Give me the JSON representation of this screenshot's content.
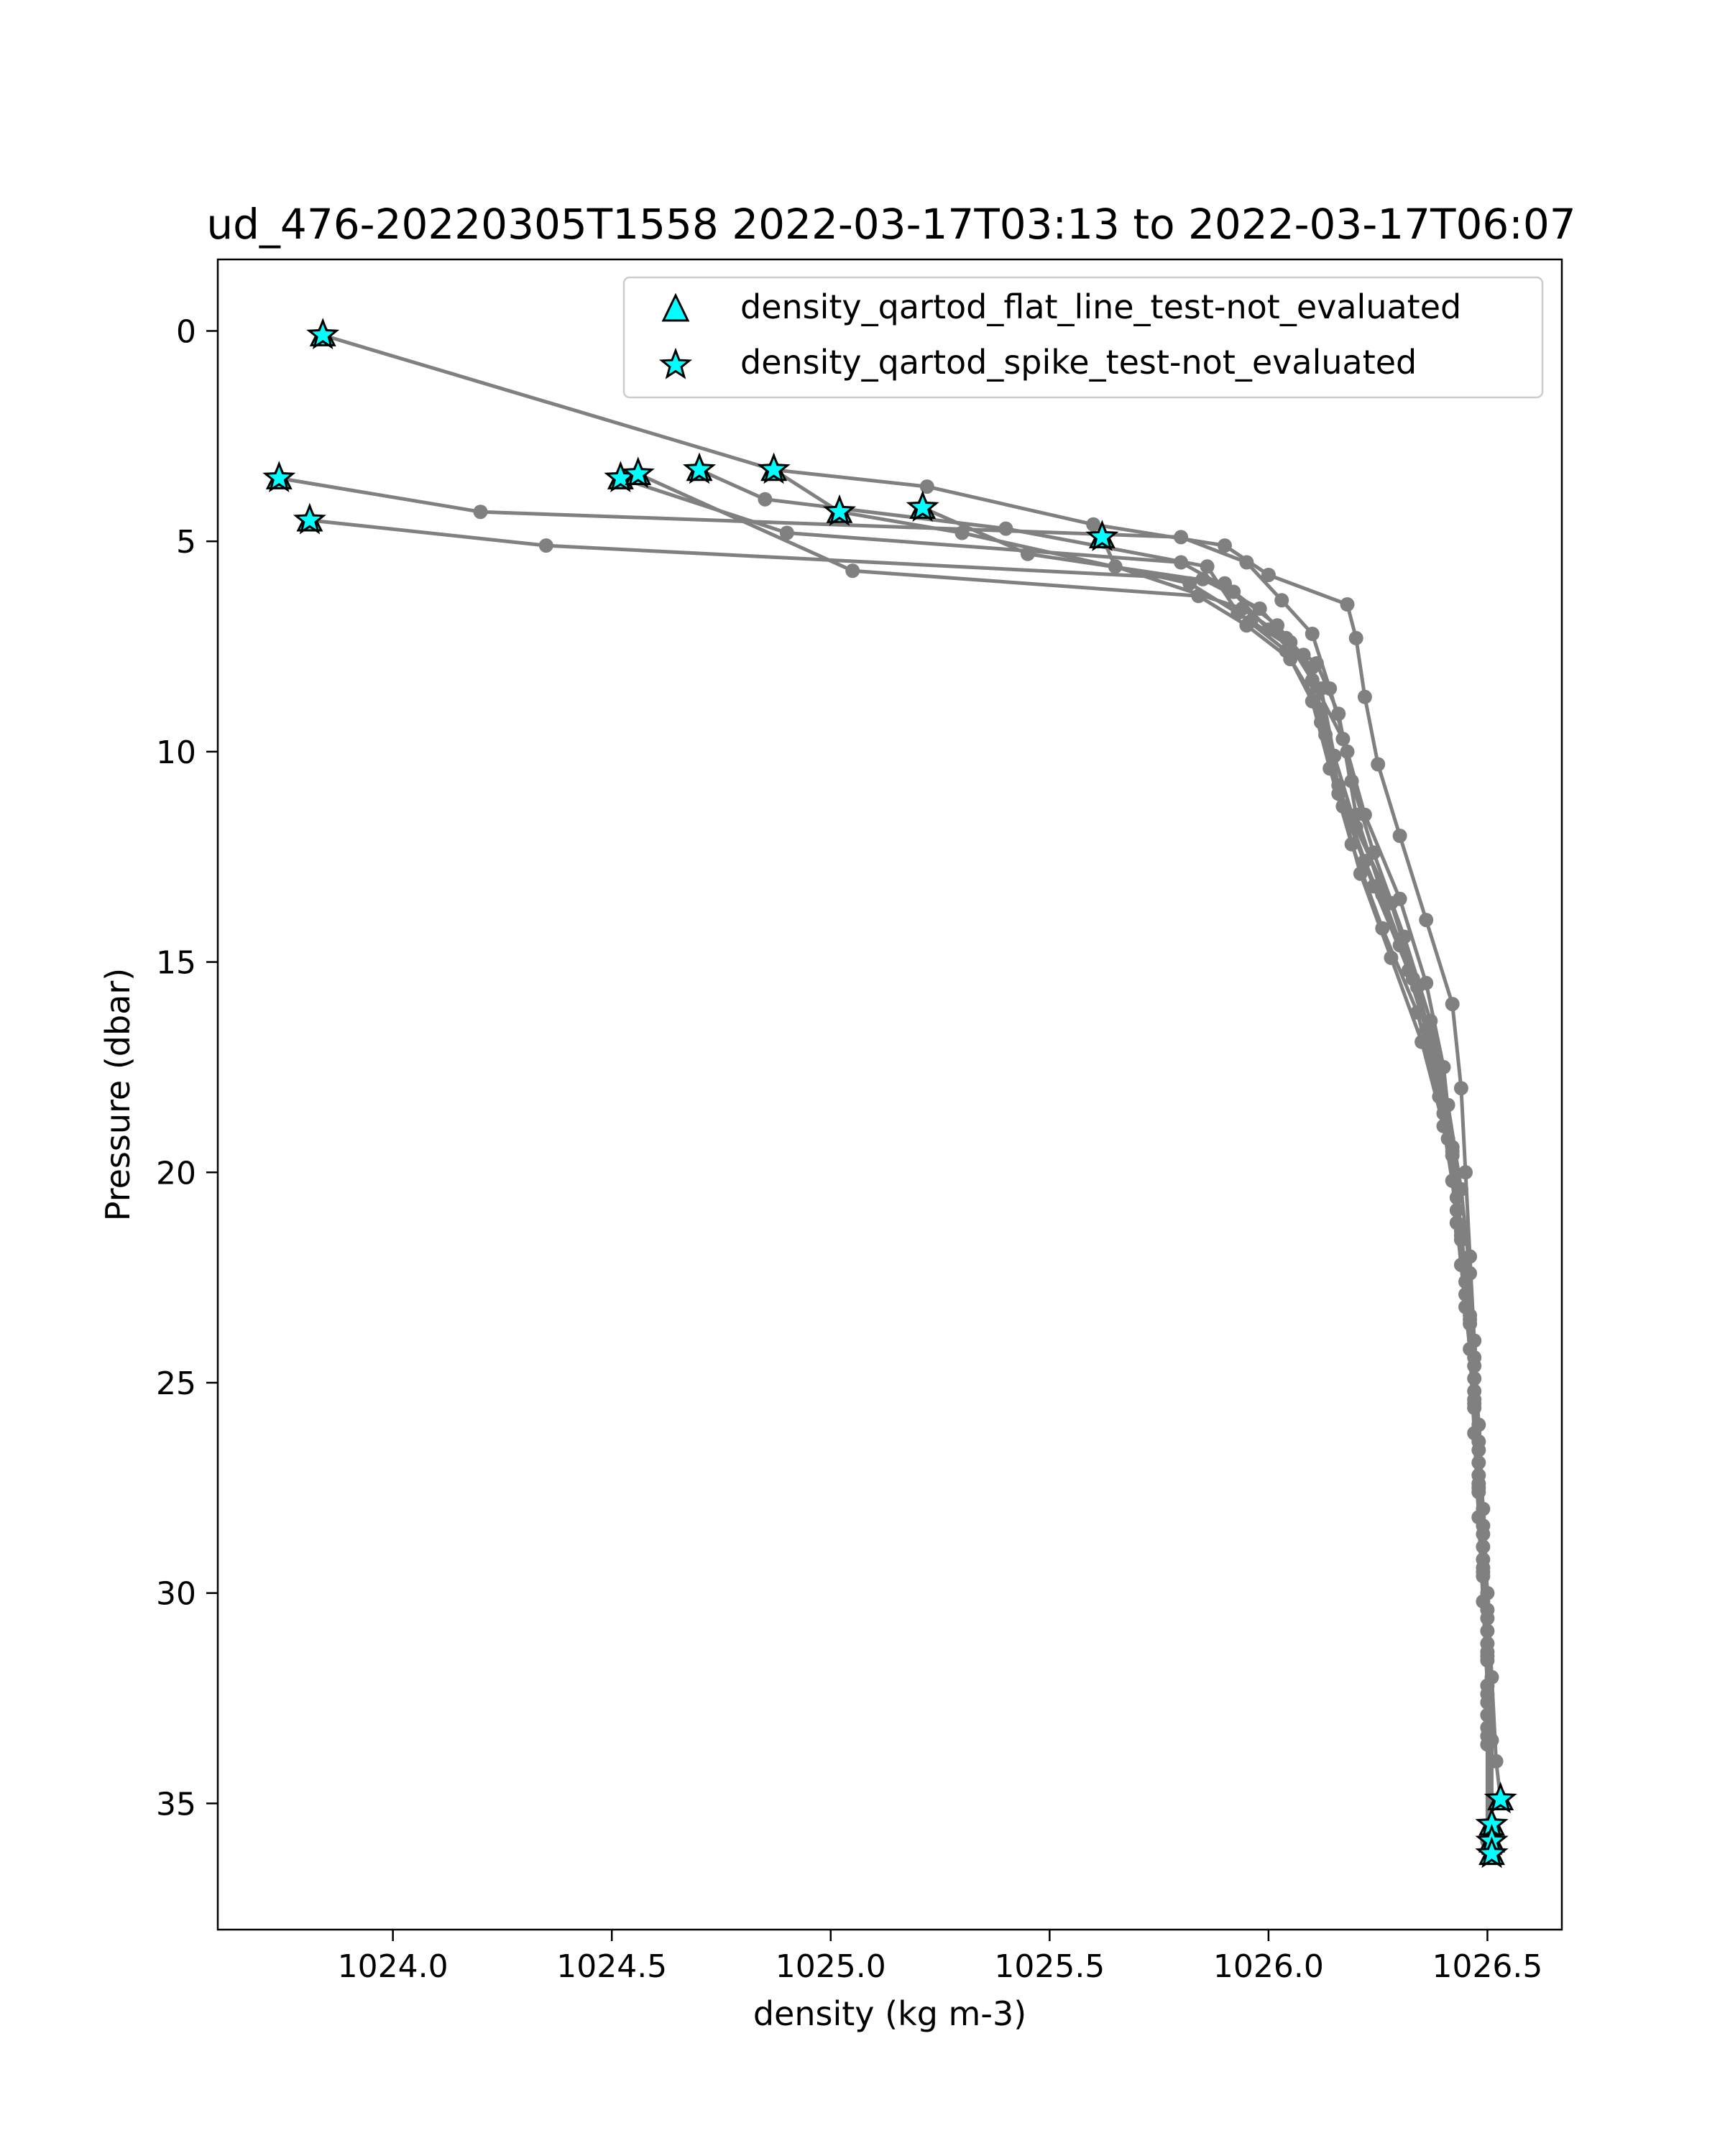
{
  "chart_data": {
    "type": "line",
    "title": "ud_476-20220305T1558 2022-03-17T03:13 to 2022-03-17T06:07",
    "xlabel": "density (kg m-3)",
    "ylabel": "Pressure (dbar)",
    "xlim": [
      1023.6,
      1026.67
    ],
    "ylim": [
      38.0,
      -1.7
    ],
    "y_inverted": true,
    "grid": false,
    "x_ticks": [
      {
        "value": 1024.0,
        "label": "1024.0"
      },
      {
        "value": 1024.5,
        "label": "1024.5"
      },
      {
        "value": 1025.0,
        "label": "1025.0"
      },
      {
        "value": 1025.5,
        "label": "1025.5"
      },
      {
        "value": 1026.0,
        "label": "1026.0"
      },
      {
        "value": 1026.5,
        "label": "1026.5"
      }
    ],
    "y_ticks": [
      {
        "value": 0,
        "label": "0"
      },
      {
        "value": 5,
        "label": "5"
      },
      {
        "value": 10,
        "label": "10"
      },
      {
        "value": 15,
        "label": "15"
      },
      {
        "value": 20,
        "label": "20"
      },
      {
        "value": 25,
        "label": "25"
      },
      {
        "value": 30,
        "label": "30"
      },
      {
        "value": 35,
        "label": "35"
      }
    ],
    "line_color": "#808080",
    "marker_color": "#00ffff",
    "legend": {
      "location": "upper right",
      "entries": [
        {
          "marker": "triangle",
          "label": "density_qartod_flat_line_test-not_evaluated"
        },
        {
          "marker": "star",
          "label": "density_qartod_spike_test-not_evaluated"
        }
      ]
    },
    "series": [
      {
        "points": [
          [
            1023.84,
            0.1
          ],
          [
            1024.87,
            3.3
          ],
          [
            1025.22,
            3.7
          ],
          [
            1025.6,
            4.6
          ],
          [
            1025.9,
            5.1
          ],
          [
            1026.0,
            5.8
          ],
          [
            1026.18,
            6.5
          ],
          [
            1026.2,
            7.3
          ],
          [
            1026.22,
            8.7
          ],
          [
            1026.25,
            10.3
          ],
          [
            1026.3,
            12.0
          ],
          [
            1026.36,
            14.0
          ],
          [
            1026.42,
            16.0
          ],
          [
            1026.44,
            18.0
          ],
          [
            1026.45,
            20.0
          ],
          [
            1026.46,
            22.0
          ],
          [
            1026.47,
            24.0
          ],
          [
            1026.48,
            26.0
          ],
          [
            1026.49,
            28.0
          ],
          [
            1026.5,
            30.0
          ],
          [
            1026.51,
            32.0
          ],
          [
            1026.52,
            34.0
          ],
          [
            1026.53,
            34.9
          ]
        ]
      },
      {
        "points": [
          [
            1023.74,
            3.5
          ],
          [
            1024.2,
            4.3
          ],
          [
            1025.8,
            4.9
          ],
          [
            1025.95,
            5.5
          ],
          [
            1026.03,
            6.4
          ],
          [
            1026.1,
            7.2
          ],
          [
            1026.14,
            8.5
          ],
          [
            1026.18,
            10.0
          ],
          [
            1026.22,
            11.5
          ],
          [
            1026.3,
            13.5
          ],
          [
            1026.36,
            15.5
          ],
          [
            1026.4,
            17.5
          ],
          [
            1026.42,
            19.5
          ],
          [
            1026.44,
            21.5
          ],
          [
            1026.46,
            23.5
          ],
          [
            1026.47,
            25.5
          ],
          [
            1026.48,
            27.5
          ],
          [
            1026.49,
            29.5
          ],
          [
            1026.5,
            31.5
          ],
          [
            1026.51,
            33.5
          ],
          [
            1026.51,
            35.5
          ]
        ]
      },
      {
        "points": [
          [
            1023.81,
            4.5
          ],
          [
            1024.35,
            5.1
          ],
          [
            1025.85,
            5.9
          ],
          [
            1025.98,
            6.6
          ],
          [
            1026.05,
            7.4
          ],
          [
            1026.12,
            8.5
          ],
          [
            1026.15,
            10.1
          ],
          [
            1026.2,
            11.8
          ],
          [
            1026.28,
            13.6
          ],
          [
            1026.34,
            15.6
          ],
          [
            1026.39,
            17.6
          ],
          [
            1026.42,
            19.6
          ],
          [
            1026.44,
            21.6
          ],
          [
            1026.46,
            23.6
          ],
          [
            1026.47,
            25.6
          ],
          [
            1026.48,
            27.6
          ],
          [
            1026.49,
            29.6
          ],
          [
            1026.5,
            31.6
          ],
          [
            1026.5,
            33.6
          ],
          [
            1026.5,
            35.9
          ]
        ]
      },
      {
        "points": [
          [
            1024.52,
            3.5
          ],
          [
            1024.9,
            4.8
          ],
          [
            1025.8,
            5.5
          ],
          [
            1025.92,
            6.2
          ],
          [
            1026.02,
            7.0
          ],
          [
            1026.1,
            8.0
          ],
          [
            1026.13,
            9.6
          ],
          [
            1026.17,
            11.3
          ],
          [
            1026.24,
            13.2
          ],
          [
            1026.32,
            15.2
          ],
          [
            1026.38,
            17.2
          ],
          [
            1026.41,
            19.2
          ],
          [
            1026.43,
            21.2
          ],
          [
            1026.45,
            23.2
          ],
          [
            1026.47,
            25.2
          ],
          [
            1026.48,
            27.2
          ],
          [
            1026.49,
            29.2
          ],
          [
            1026.5,
            31.2
          ],
          [
            1026.5,
            33.2
          ],
          [
            1026.51,
            36.2
          ]
        ]
      },
      {
        "points": [
          [
            1024.56,
            3.4
          ],
          [
            1025.05,
            5.7
          ],
          [
            1025.84,
            6.3
          ],
          [
            1025.95,
            7.0
          ],
          [
            1026.05,
            7.8
          ],
          [
            1026.12,
            9.0
          ],
          [
            1026.16,
            10.8
          ],
          [
            1026.22,
            12.6
          ],
          [
            1026.3,
            14.6
          ],
          [
            1026.36,
            16.6
          ],
          [
            1026.4,
            18.6
          ],
          [
            1026.43,
            20.6
          ],
          [
            1026.45,
            22.6
          ],
          [
            1026.47,
            24.6
          ],
          [
            1026.48,
            26.6
          ],
          [
            1026.49,
            28.6
          ],
          [
            1026.5,
            30.6
          ],
          [
            1026.5,
            32.6
          ],
          [
            1026.51,
            35.9
          ]
        ]
      },
      {
        "points": [
          [
            1024.7,
            3.3
          ],
          [
            1024.85,
            4.0
          ],
          [
            1025.4,
            4.7
          ],
          [
            1025.86,
            5.6
          ],
          [
            1025.93,
            6.7
          ],
          [
            1026.04,
            7.6
          ],
          [
            1026.1,
            8.8
          ],
          [
            1026.14,
            10.4
          ],
          [
            1026.19,
            12.2
          ],
          [
            1026.26,
            14.2
          ],
          [
            1026.34,
            16.2
          ],
          [
            1026.39,
            18.2
          ],
          [
            1026.42,
            20.2
          ],
          [
            1026.44,
            22.2
          ],
          [
            1026.46,
            24.2
          ],
          [
            1026.47,
            26.2
          ],
          [
            1026.48,
            28.2
          ],
          [
            1026.49,
            30.2
          ],
          [
            1026.5,
            32.2
          ],
          [
            1026.51,
            36.1
          ]
        ]
      },
      {
        "points": [
          [
            1024.87,
            3.3
          ],
          [
            1025.02,
            4.3
          ],
          [
            1025.3,
            4.8
          ],
          [
            1025.82,
            6.0
          ],
          [
            1025.96,
            6.9
          ],
          [
            1026.08,
            7.7
          ],
          [
            1026.12,
            9.3
          ],
          [
            1026.16,
            11.0
          ],
          [
            1026.21,
            12.9
          ],
          [
            1026.28,
            14.9
          ],
          [
            1026.35,
            16.9
          ],
          [
            1026.4,
            18.9
          ],
          [
            1026.43,
            20.9
          ],
          [
            1026.45,
            22.9
          ],
          [
            1026.47,
            24.9
          ],
          [
            1026.48,
            26.9
          ],
          [
            1026.49,
            28.9
          ],
          [
            1026.5,
            30.9
          ],
          [
            1026.5,
            32.9
          ],
          [
            1026.51,
            36.2
          ]
        ]
      },
      {
        "points": [
          [
            1025.21,
            4.2
          ],
          [
            1025.45,
            5.3
          ],
          [
            1025.9,
            6.0
          ],
          [
            1026.0,
            7.1
          ],
          [
            1026.11,
            7.9
          ],
          [
            1026.16,
            9.1
          ],
          [
            1026.19,
            10.7
          ],
          [
            1026.24,
            12.4
          ],
          [
            1026.31,
            14.4
          ],
          [
            1026.37,
            16.4
          ],
          [
            1026.41,
            18.4
          ],
          [
            1026.44,
            20.4
          ],
          [
            1026.46,
            22.4
          ],
          [
            1026.47,
            24.4
          ],
          [
            1026.48,
            26.4
          ],
          [
            1026.49,
            28.4
          ],
          [
            1026.5,
            30.4
          ],
          [
            1026.5,
            32.4
          ],
          [
            1026.51,
            35.7
          ]
        ]
      },
      {
        "points": [
          [
            1025.62,
            4.9
          ],
          [
            1025.65,
            5.6
          ],
          [
            1025.94,
            6.6
          ],
          [
            1026.04,
            7.3
          ],
          [
            1026.1,
            8.3
          ],
          [
            1026.17,
            9.7
          ],
          [
            1026.2,
            11.5
          ],
          [
            1026.26,
            13.4
          ],
          [
            1026.33,
            15.4
          ],
          [
            1026.38,
            17.4
          ],
          [
            1026.42,
            19.4
          ],
          [
            1026.44,
            21.4
          ],
          [
            1026.46,
            23.4
          ],
          [
            1026.47,
            25.4
          ],
          [
            1026.48,
            27.4
          ],
          [
            1026.49,
            29.4
          ],
          [
            1026.5,
            31.4
          ],
          [
            1026.5,
            33.4
          ],
          [
            1026.51,
            35.6
          ]
        ]
      }
    ],
    "flagged_points": [
      [
        1023.84,
        0.1
      ],
      [
        1023.74,
        3.5
      ],
      [
        1023.81,
        4.5
      ],
      [
        1024.52,
        3.5
      ],
      [
        1024.56,
        3.4
      ],
      [
        1024.7,
        3.3
      ],
      [
        1024.87,
        3.3
      ],
      [
        1025.02,
        4.3
      ],
      [
        1025.21,
        4.2
      ],
      [
        1025.62,
        4.9
      ],
      [
        1026.53,
        34.9
      ],
      [
        1026.51,
        35.5
      ],
      [
        1026.51,
        35.9
      ],
      [
        1026.51,
        36.2
      ]
    ]
  }
}
